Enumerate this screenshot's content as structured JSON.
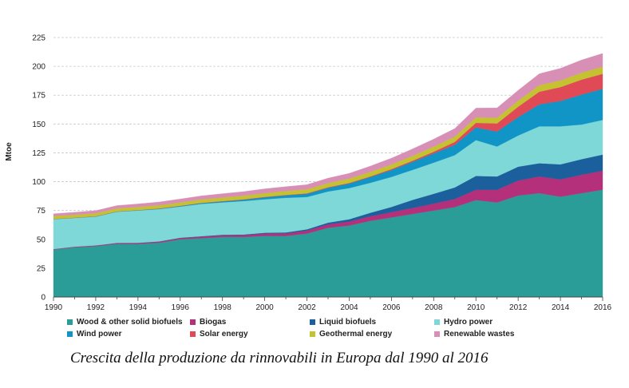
{
  "chart_data": {
    "type": "area",
    "stacked": true,
    "ylabel": "Mtoe",
    "xlabel": "",
    "ylim": [
      0,
      225
    ],
    "yticks": [
      0,
      25,
      50,
      75,
      100,
      125,
      150,
      175,
      200,
      225
    ],
    "xlim": [
      1990,
      2016
    ],
    "xticks": [
      1990,
      1992,
      1994,
      1996,
      1998,
      2000,
      2002,
      2004,
      2006,
      2008,
      2010,
      2012,
      2014,
      2016
    ],
    "grid": "horizontal dashed",
    "legend_position": "bottom",
    "x": [
      1990,
      1991,
      1992,
      1993,
      1994,
      1995,
      1996,
      1997,
      1998,
      1999,
      2000,
      2001,
      2002,
      2003,
      2004,
      2005,
      2006,
      2007,
      2008,
      2009,
      2010,
      2011,
      2012,
      2013,
      2014,
      2015,
      2016
    ],
    "series": [
      {
        "name": "Wood & other solid biofuels",
        "color": "#2a9d98",
        "values": [
          41,
          43,
          44,
          46,
          46,
          47,
          50,
          51,
          52,
          52,
          53,
          53,
          55,
          60,
          62,
          66,
          69,
          72,
          75,
          78,
          84,
          82,
          88,
          90,
          87,
          90,
          93
        ]
      },
      {
        "name": "Biogas",
        "color": "#b5307a",
        "values": [
          0.5,
          0.6,
          0.7,
          0.8,
          0.9,
          1.0,
          1.1,
          1.3,
          1.5,
          1.7,
          2.0,
          2.2,
          2.6,
          3.0,
          3.4,
          4.0,
          4.6,
          5.2,
          6.0,
          7.0,
          9.0,
          11.0,
          13.0,
          14.5,
          15.0,
          16.0,
          16.5
        ]
      },
      {
        "name": "Liquid biofuels",
        "color": "#1b5f9c",
        "values": [
          0.0,
          0.0,
          0.0,
          0.1,
          0.1,
          0.2,
          0.3,
          0.4,
          0.5,
          0.5,
          0.7,
          0.8,
          1.1,
          1.5,
          2.0,
          3.0,
          4.5,
          7.0,
          8.5,
          10.0,
          12.0,
          11.5,
          12.0,
          11.5,
          13.0,
          13.5,
          14.0
        ]
      },
      {
        "name": "Hydro power",
        "color": "#7fd8d8",
        "values": [
          26,
          25,
          25,
          27,
          28,
          28,
          27,
          28,
          28,
          29,
          29,
          30,
          28,
          27,
          27,
          26,
          26,
          26,
          27,
          28,
          31,
          26,
          27,
          32,
          33,
          30,
          30
        ]
      },
      {
        "name": "Wind power",
        "color": "#1195c6",
        "values": [
          0.1,
          0.1,
          0.2,
          0.2,
          0.3,
          0.4,
          0.5,
          0.7,
          0.9,
          1.2,
          1.8,
          2.2,
          2.8,
          3.2,
          4.0,
          5.0,
          6.0,
          7.0,
          8.0,
          9.0,
          11.0,
          13.0,
          16.0,
          19.0,
          22.0,
          26.0,
          27.0
        ]
      },
      {
        "name": "Solar energy",
        "color": "#e04a56",
        "values": [
          0.1,
          0.1,
          0.1,
          0.1,
          0.1,
          0.2,
          0.2,
          0.2,
          0.3,
          0.3,
          0.3,
          0.3,
          0.4,
          0.5,
          0.5,
          0.6,
          0.8,
          1.0,
          1.5,
          2.5,
          4.0,
          7.0,
          9.0,
          11.0,
          12.0,
          13.0,
          13.0
        ]
      },
      {
        "name": "Geothermal energy",
        "color": "#c4c230",
        "values": [
          2.5,
          2.5,
          2.6,
          2.6,
          2.7,
          2.8,
          2.9,
          3.0,
          3.1,
          3.2,
          3.3,
          3.4,
          3.5,
          3.6,
          3.8,
          3.9,
          4.0,
          4.2,
          4.4,
          4.6,
          4.8,
          5.0,
          5.2,
          5.6,
          5.8,
          6.0,
          6.2
        ]
      },
      {
        "name": "Renewable wastes",
        "color": "#d88fb5",
        "values": [
          2.0,
          2.2,
          2.3,
          2.5,
          2.6,
          2.8,
          3.0,
          3.1,
          3.3,
          3.5,
          3.7,
          3.8,
          4.0,
          4.3,
          4.5,
          5.0,
          5.5,
          6.0,
          6.5,
          7.0,
          8.0,
          8.5,
          9.0,
          10.0,
          10.5,
          11.0,
          11.5
        ]
      }
    ]
  },
  "caption": "Crescita della produzione da rinnovabili in Europa dal 1990 al 2016"
}
